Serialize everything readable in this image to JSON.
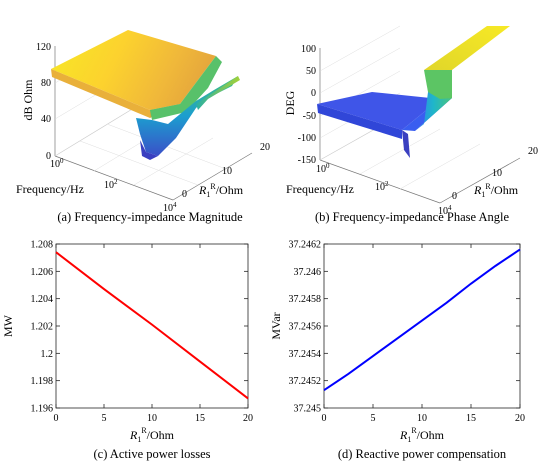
{
  "chart_data": [
    {
      "type": "surface",
      "caption": "(a) Frequency-impedance Magnitude",
      "zlabel": "dB Ohm",
      "xlabel": "Frequency/Hz",
      "ylabel_main": "R",
      "ylabel_sub": "1",
      "ylabel_sup": "R",
      "ylabel_unit": "/Ohm",
      "zlim": [
        0,
        120
      ],
      "z_ticks": [
        "0",
        "40",
        "80",
        "120"
      ],
      "x_ticks": [
        {
          "base": "10",
          "exp": "0"
        },
        {
          "base": "10",
          "exp": "2"
        },
        {
          "base": "10",
          "exp": "4"
        }
      ],
      "y_ticks": [
        "0",
        "10",
        "20"
      ],
      "colormap": "parula"
    },
    {
      "type": "surface",
      "caption": "(b) Frequency-impedance Phase Angle",
      "zlabel": "DEG",
      "xlabel": "Frequency/Hz",
      "ylabel_main": "R",
      "ylabel_sub": "1",
      "ylabel_sup": "R",
      "ylabel_unit": "/Ohm",
      "zlim": [
        -150,
        100
      ],
      "z_ticks": [
        "-150",
        "-100",
        "-50",
        "0",
        "50",
        "100"
      ],
      "x_ticks": [
        {
          "base": "10",
          "exp": "0"
        },
        {
          "base": "10",
          "exp": "2"
        },
        {
          "base": "10",
          "exp": "4"
        }
      ],
      "y_ticks": [
        "0",
        "10",
        "20"
      ],
      "colormap": "parula"
    },
    {
      "type": "line",
      "caption": "(c) Active power losses",
      "ylabel": "MW",
      "xlabel_main": "R",
      "xlabel_sub": "1",
      "xlabel_sup": "R",
      "xlabel_unit": "/Ohm",
      "xlim": [
        0,
        20
      ],
      "ylim": [
        1.196,
        1.208
      ],
      "x_ticks": [
        "0",
        "5",
        "10",
        "15",
        "20"
      ],
      "y_ticks": [
        "1.196",
        "1.198",
        "1.2",
        "1.202",
        "1.204",
        "1.206",
        "1.208"
      ],
      "color": "#ff0000",
      "x": [
        0,
        5,
        10,
        15,
        20
      ],
      "y": [
        1.2074,
        1.2047,
        1.2021,
        1.1994,
        1.1967
      ]
    },
    {
      "type": "line",
      "caption": "(d)  Reactive power compensation",
      "ylabel": "MVar",
      "xlabel_main": "R",
      "xlabel_sub": "1",
      "xlabel_sup": "R",
      "xlabel_unit": "/Ohm",
      "xlim": [
        0,
        20
      ],
      "ylim": [
        37.245,
        37.2462
      ],
      "x_ticks": [
        "0",
        "5",
        "10",
        "15",
        "20"
      ],
      "y_ticks": [
        "37.245",
        "37.2452",
        "37.2454",
        "37.2456",
        "37.2458",
        "37.246",
        "37.2462"
      ],
      "color": "#0000ff",
      "x": [
        0,
        2.5,
        5,
        7.5,
        10,
        12.5,
        15,
        17.5,
        20
      ],
      "y": [
        37.24513,
        37.24525,
        37.24538,
        37.24551,
        37.24564,
        37.24577,
        37.24591,
        37.24604,
        37.24616
      ]
    }
  ]
}
